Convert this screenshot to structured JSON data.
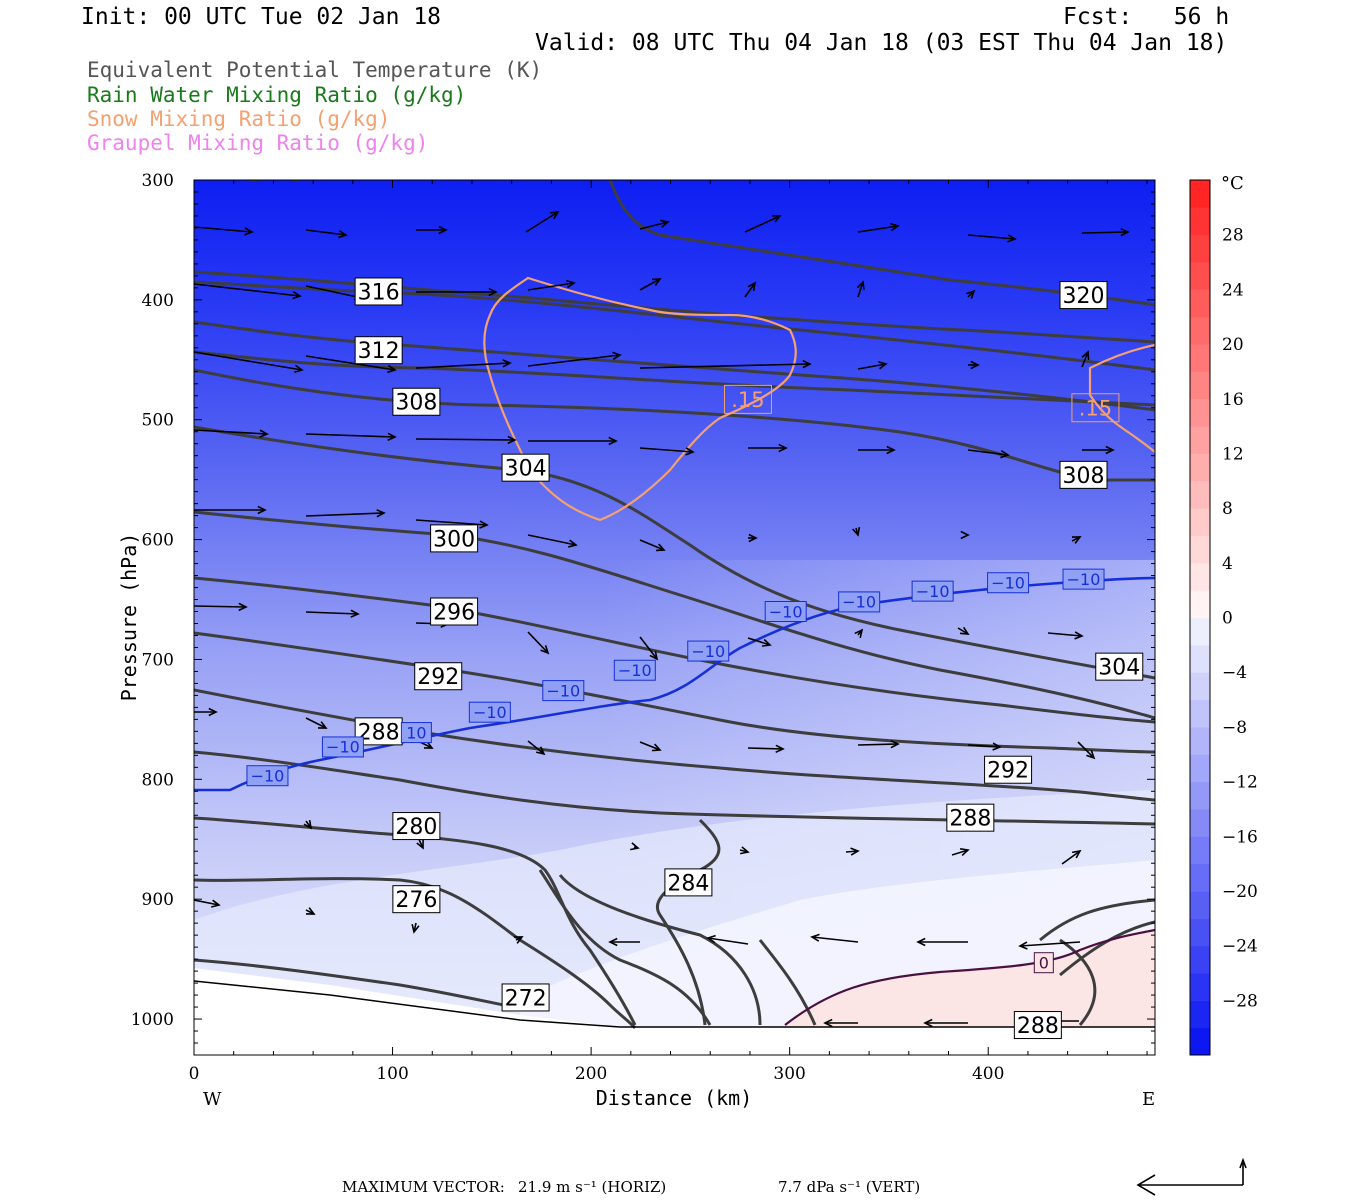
{
  "header": {
    "init": "Init: 00 UTC Tue 02 Jan 18",
    "fcst": "Fcst:   56 h",
    "valid": "Valid: 08 UTC Thu 04 Jan 18 (03 EST Thu 04 Jan 18)"
  },
  "legend": [
    {
      "text": "Equivalent Potential Temperature (K)",
      "color": "#555555"
    },
    {
      "text": "Rain Water Mixing Ratio (g/kg)",
      "color": "#1a7a1a"
    },
    {
      "text": "Snow Mixing Ratio (g/kg)",
      "color": "#f4a070"
    },
    {
      "text": "Graupel Mixing Ratio (g/kg)",
      "color": "#ee82ee"
    }
  ],
  "chart_data": {
    "type": "cross-section",
    "xlabel": "Distance (km)",
    "ylabel": "Pressure (hPa)",
    "xlim": [
      0,
      484
    ],
    "ylim": [
      1030,
      300
    ],
    "x_ticks": [
      "0",
      "100",
      "200",
      "300",
      "400"
    ],
    "x_tick_values": [
      0,
      100,
      200,
      300,
      400
    ],
    "y_ticks": [
      "300",
      "400",
      "500",
      "600",
      "700",
      "800",
      "900",
      "1000"
    ],
    "y_tick_values": [
      300,
      400,
      500,
      600,
      700,
      800,
      900,
      1000
    ],
    "west_label": "W",
    "east_label": "E",
    "colorbar": {
      "unit": "°C",
      "labels": [
        "28",
        "24",
        "20",
        "16",
        "12",
        "8",
        "4",
        "0",
        "−4",
        "−8",
        "−12",
        "−16",
        "−20",
        "−24",
        "−28"
      ],
      "label_values": [
        28,
        24,
        20,
        16,
        12,
        8,
        4,
        0,
        -4,
        -8,
        -12,
        -16,
        -20,
        -24,
        -28
      ],
      "range": [
        -32,
        32
      ]
    },
    "theta_e_labels": [
      {
        "text": "316",
        "x": 93,
        "p": 393
      },
      {
        "text": "320",
        "x": 448,
        "p": 396
      },
      {
        "text": "312",
        "x": 93,
        "p": 442
      },
      {
        "text": "308",
        "x": 112,
        "p": 485
      },
      {
        "text": "304",
        "x": 167,
        "p": 540
      },
      {
        "text": "308",
        "x": 448,
        "p": 546
      },
      {
        "text": "300",
        "x": 131,
        "p": 599
      },
      {
        "text": "296",
        "x": 131,
        "p": 660
      },
      {
        "text": "304",
        "x": 466,
        "p": 706
      },
      {
        "text": "292",
        "x": 123,
        "p": 714
      },
      {
        "text": "288",
        "x": 93,
        "p": 760
      },
      {
        "text": "292",
        "x": 410,
        "p": 792
      },
      {
        "text": "288",
        "x": 391,
        "p": 832
      },
      {
        "text": "280",
        "x": 112,
        "p": 839
      },
      {
        "text": "284",
        "x": 249,
        "p": 886
      },
      {
        "text": "276",
        "x": 112,
        "p": 900
      },
      {
        "text": "272",
        "x": 167,
        "p": 982
      },
      {
        "text": "288",
        "x": 425,
        "p": 1005
      }
    ],
    "temp_labels": [
      {
        "text": "−10",
        "x": 37,
        "p": 797
      },
      {
        "text": "−10",
        "x": 75,
        "p": 773
      },
      {
        "text": "10",
        "x": 112,
        "p": 761
      },
      {
        "text": "−10",
        "x": 149,
        "p": 744
      },
      {
        "text": "−10",
        "x": 186,
        "p": 726
      },
      {
        "text": "−10",
        "x": 222,
        "p": 709
      },
      {
        "text": "−10",
        "x": 259,
        "p": 693
      },
      {
        "text": "−10",
        "x": 298,
        "p": 660
      },
      {
        "text": "−10",
        "x": 335,
        "p": 652
      },
      {
        "text": "−10",
        "x": 372,
        "p": 643
      },
      {
        "text": "−10",
        "x": 410,
        "p": 636
      },
      {
        "text": "−10",
        "x": 448,
        "p": 633
      },
      {
        "text": "0",
        "x": 428,
        "p": 953
      }
    ],
    "snow_labels": [
      {
        "text": ".15",
        "x": 279,
        "p": 483
      },
      {
        "text": ".15",
        "x": 454,
        "p": 490
      }
    ]
  },
  "footer": {
    "max_label": "MAXIMUM VECTOR:",
    "horiz": "21.9 m s⁻¹ (HORIZ)",
    "vert": "7.7 dPa s⁻¹ (VERT)"
  }
}
